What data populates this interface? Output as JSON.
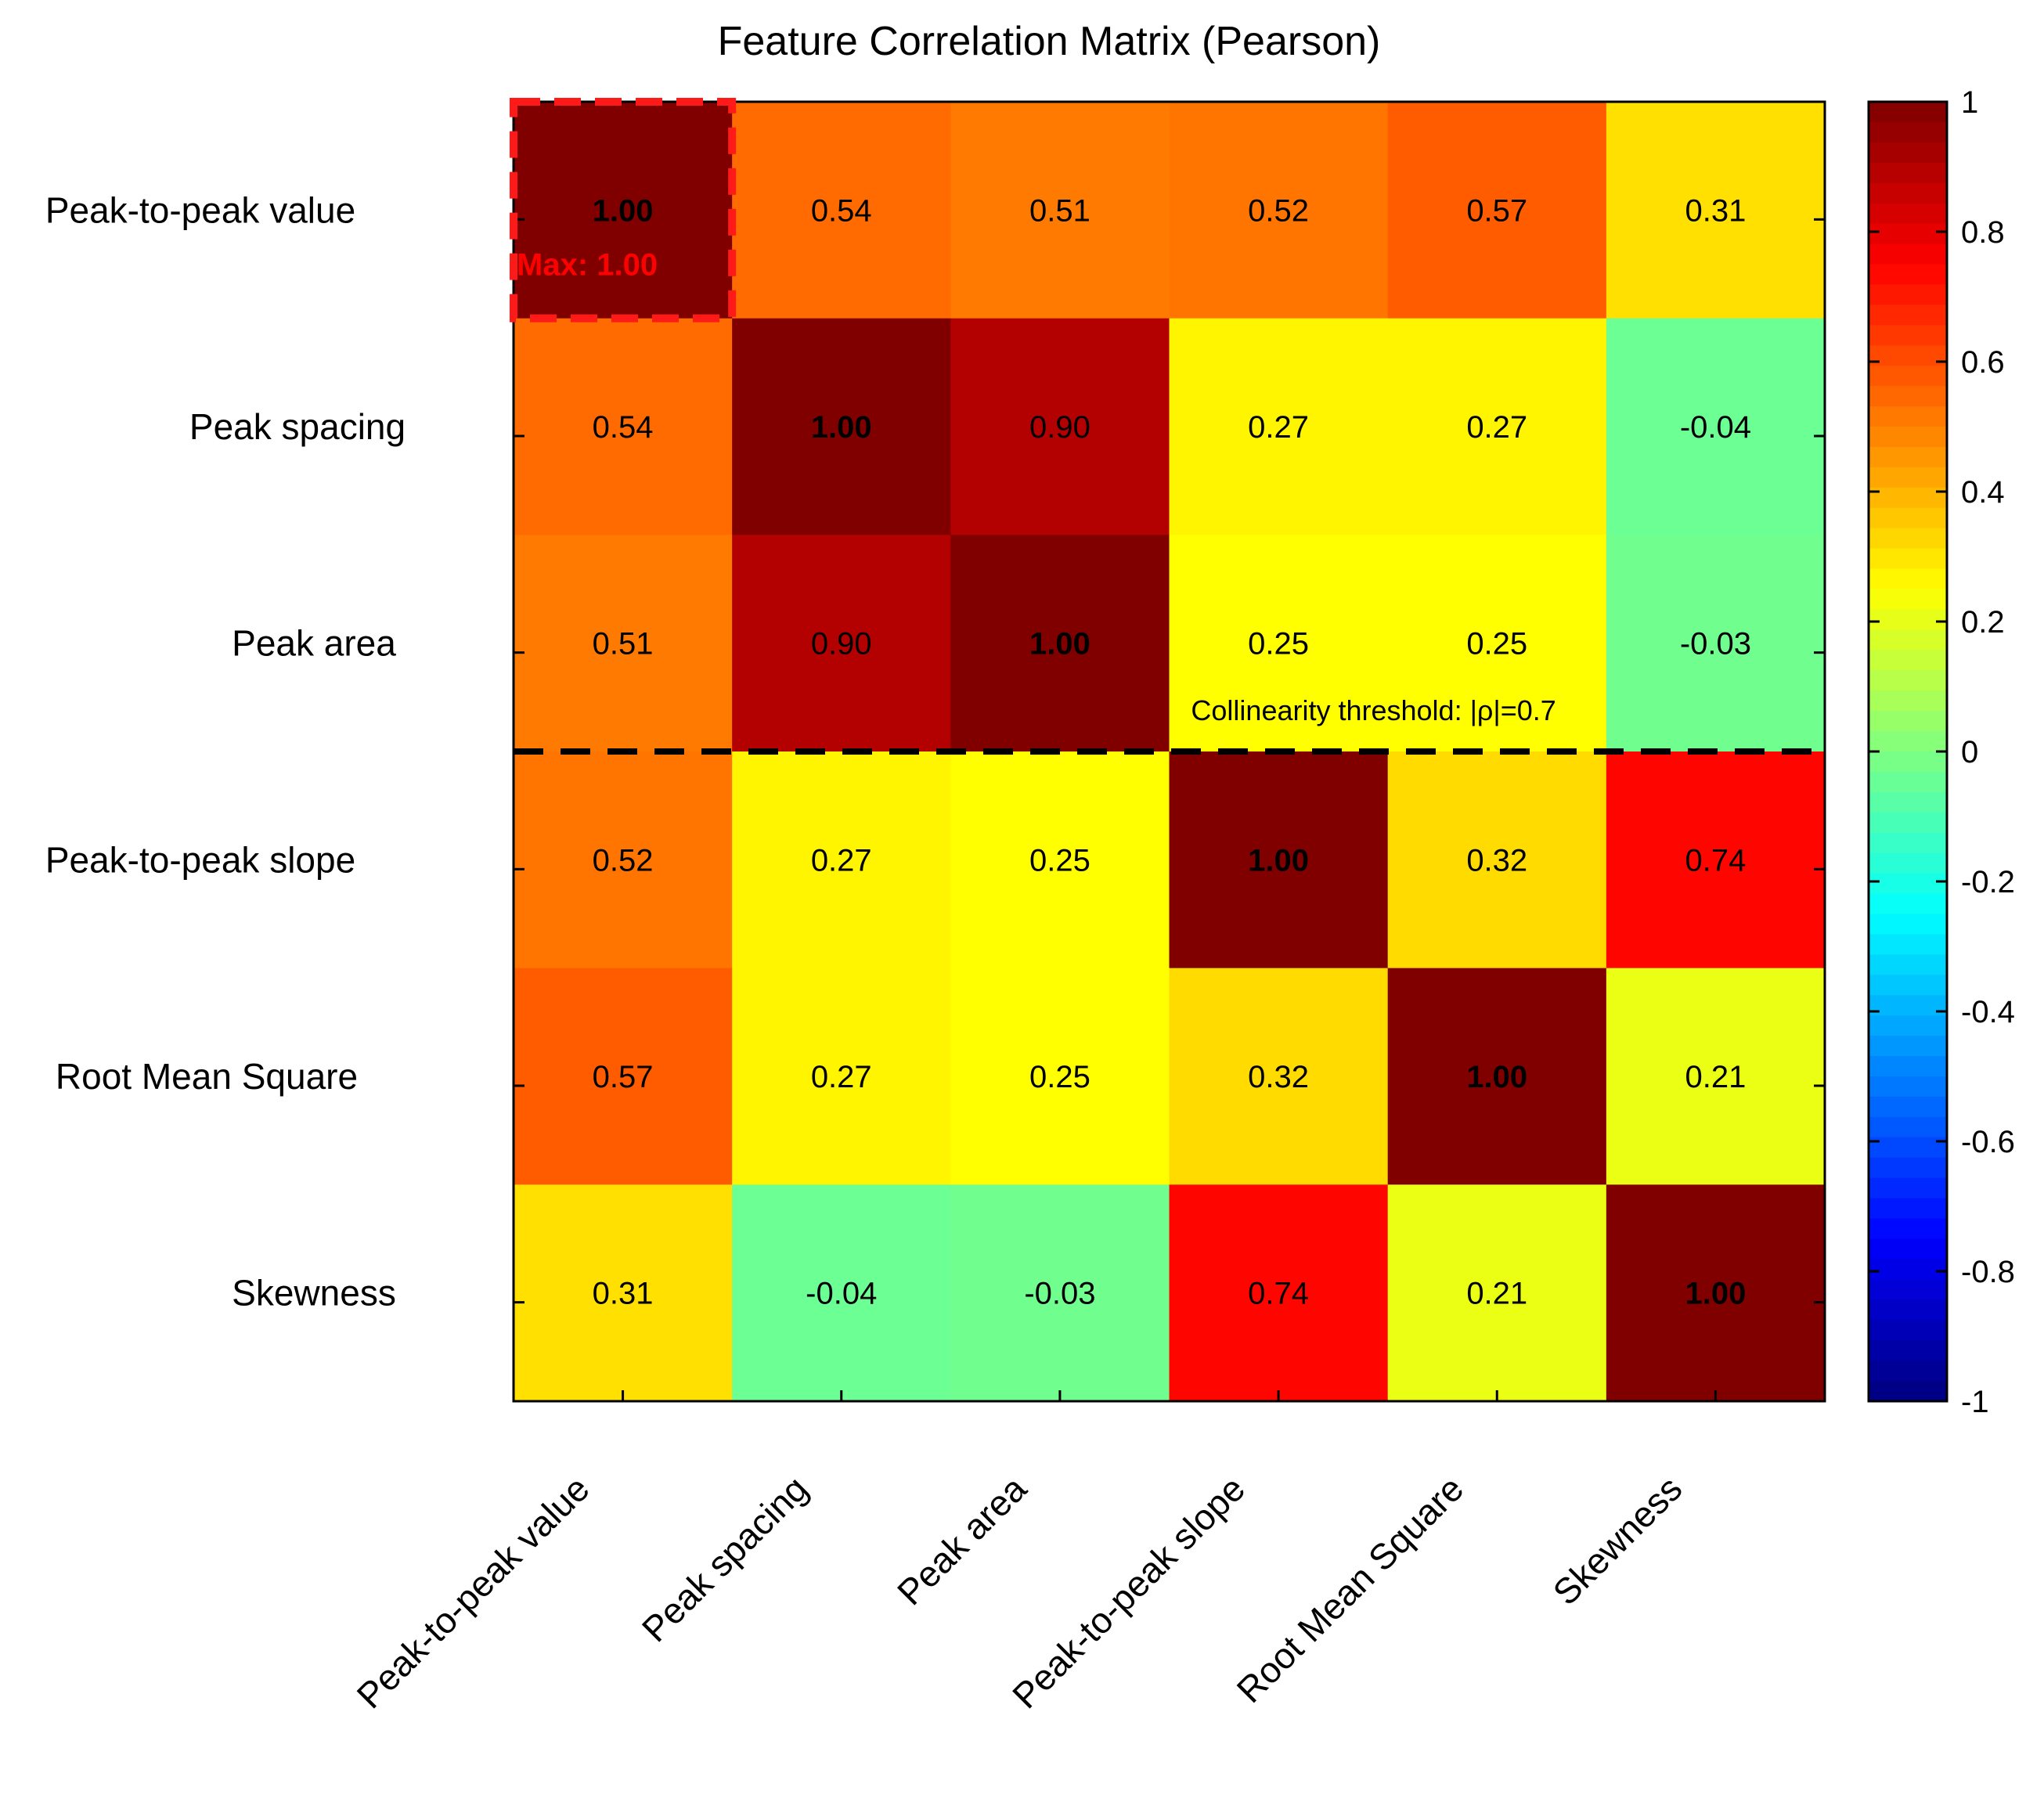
{
  "chart_data": {
    "type": "heatmap",
    "title": "Feature Correlation Matrix (Pearson)",
    "labels": [
      "Peak-to-peak value",
      "Peak spacing",
      "Peak area",
      "Peak-to-peak slope",
      "Root Mean Square",
      "Skewness"
    ],
    "matrix": [
      [
        1.0,
        0.54,
        0.51,
        0.52,
        0.57,
        0.31
      ],
      [
        0.54,
        1.0,
        0.9,
        0.27,
        0.27,
        -0.04
      ],
      [
        0.51,
        0.9,
        1.0,
        0.25,
        0.25,
        -0.03
      ],
      [
        0.52,
        0.27,
        0.25,
        1.0,
        0.32,
        0.74
      ],
      [
        0.57,
        0.27,
        0.25,
        0.32,
        1.0,
        0.21
      ],
      [
        0.31,
        -0.04,
        -0.03,
        0.74,
        0.21,
        1.0
      ]
    ],
    "value_format": "2 decimals",
    "colormap": "jet",
    "color_range": [
      -1,
      1
    ],
    "colorbar_ticks": [
      1,
      0.8,
      0.6,
      0.4,
      0.2,
      0,
      -0.2,
      -0.4,
      -0.6,
      -0.8,
      -1
    ],
    "annotations": {
      "max_label": "Max: 1.00",
      "max_cell": [
        0,
        0
      ],
      "threshold_label": "Collinearity threshold: |ρ|=0.7",
      "threshold_after_row": 3
    }
  }
}
